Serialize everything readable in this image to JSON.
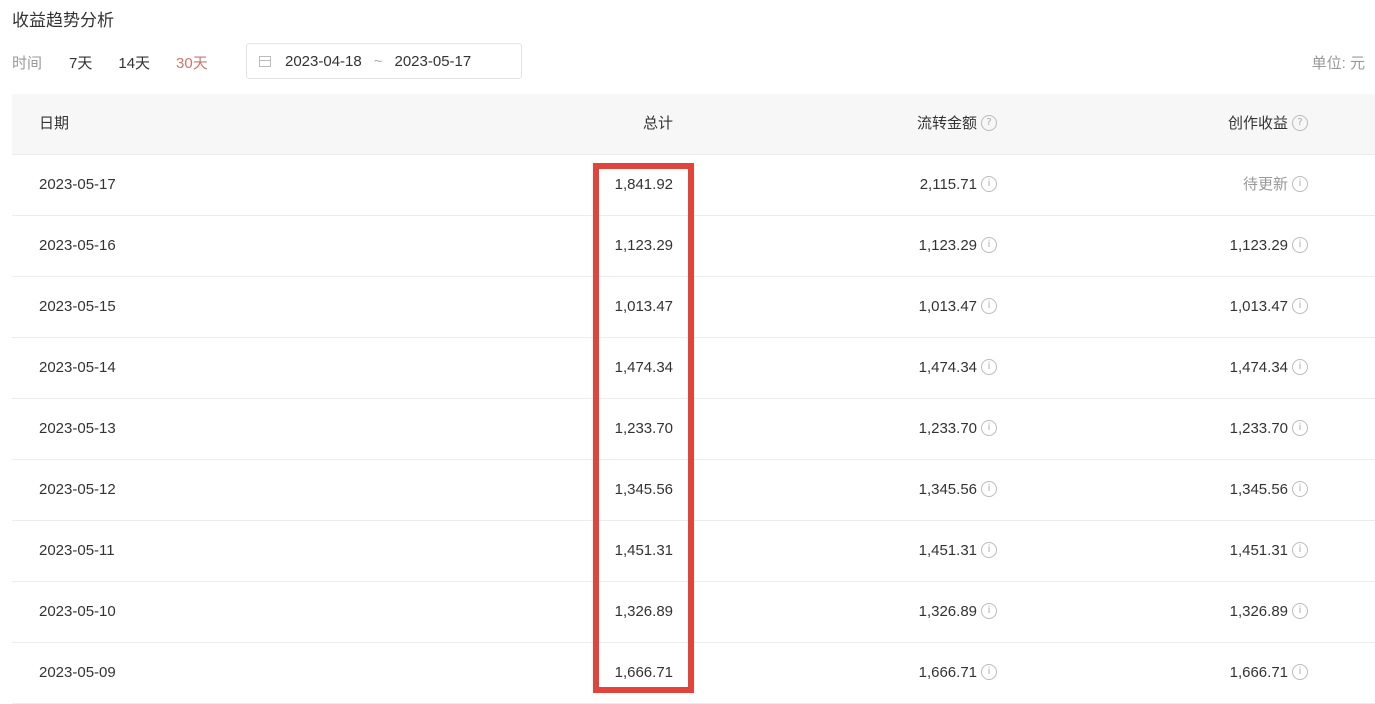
{
  "title": "收益趋势分析",
  "filters": {
    "label": "时间",
    "options": [
      "7天",
      "14天",
      "30天"
    ],
    "active": "30天",
    "active_color": "#c9776f",
    "range_start": "2023-04-18",
    "range_sep": "~",
    "range_end": "2023-05-17"
  },
  "unit": "单位: 元",
  "table": {
    "headers": [
      "日期",
      "总计",
      "流转金额",
      "创作收益"
    ],
    "rows": [
      [
        "2023-05-17",
        "1,841.92",
        "2,115.71",
        "待更新"
      ],
      [
        "2023-05-16",
        "1,123.29",
        "1,123.29",
        "1,123.29"
      ],
      [
        "2023-05-15",
        "1,013.47",
        "1,013.47",
        "1,013.47"
      ],
      [
        "2023-05-14",
        "1,474.34",
        "1,474.34",
        "1,474.34"
      ],
      [
        "2023-05-13",
        "1,233.70",
        "1,233.70",
        "1,233.70"
      ],
      [
        "2023-05-12",
        "1,345.56",
        "1,345.56",
        "1,345.56"
      ],
      [
        "2023-05-11",
        "1,451.31",
        "1,451.31",
        "1,451.31"
      ],
      [
        "2023-05-10",
        "1,326.89",
        "1,326.89",
        "1,326.89"
      ],
      [
        "2023-05-09",
        "1,666.71",
        "1,666.71",
        "1,666.71"
      ]
    ]
  },
  "highlight_color": "#e0443b",
  "icons": {
    "header": "question-circle-icon",
    "cell": "info-circle-icon"
  }
}
